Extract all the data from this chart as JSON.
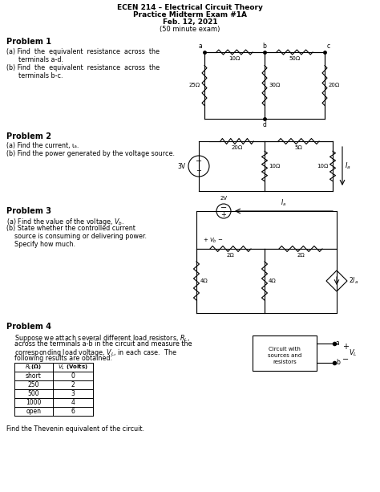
{
  "title_lines": [
    "ECEN 214 – Electrical Circuit Theory",
    "Practice Midterm Exam #1A",
    "Feb. 12, 2021",
    "(50 minute exam)"
  ],
  "bg_color": "#ffffff",
  "fig_width": 4.74,
  "fig_height": 6.13,
  "dpi": 100
}
